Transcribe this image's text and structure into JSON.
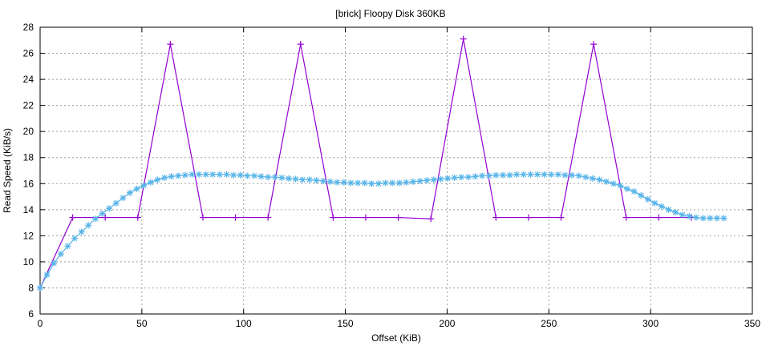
{
  "chart_data": {
    "type": "line",
    "title": "[brick] Floopy Disk 360KB",
    "xlabel": "Offset (KiB)",
    "ylabel": "Read Speed (KiB/s)",
    "xlim": [
      0,
      350
    ],
    "ylim": [
      6,
      28
    ],
    "xticks": [
      0,
      50,
      100,
      150,
      200,
      250,
      300,
      350
    ],
    "yticks": [
      6,
      8,
      10,
      12,
      14,
      16,
      18,
      20,
      22,
      24,
      26,
      28
    ],
    "grid": true,
    "legend": "none",
    "series": [
      {
        "color": "#9400d3",
        "marker": "plus",
        "x": [
          0,
          16,
          32,
          48,
          64,
          80,
          96,
          112,
          128,
          144,
          160,
          176,
          192,
          208,
          224,
          240,
          256,
          272,
          288,
          304,
          320
        ],
        "y": [
          8,
          13.4,
          13.4,
          13.4,
          26.7,
          13.4,
          13.4,
          13.4,
          26.7,
          13.4,
          13.4,
          13.4,
          13.3,
          27.1,
          13.4,
          13.4,
          13.4,
          26.7,
          13.4,
          13.4,
          13.4
        ]
      },
      {
        "color": "#56b4e9",
        "marker": "star",
        "x_range": [
          0,
          336
        ],
        "y": [
          8,
          9.0,
          9.9,
          10.6,
          11.2,
          11.8,
          12.3,
          12.8,
          13.3,
          13.7,
          14.1,
          14.5,
          14.9,
          15.3,
          15.6,
          15.85,
          16.1,
          16.3,
          16.45,
          16.55,
          16.6,
          16.65,
          16.7,
          16.7,
          16.7,
          16.7,
          16.7,
          16.7,
          16.65,
          16.65,
          16.6,
          16.6,
          16.55,
          16.5,
          16.5,
          16.45,
          16.4,
          16.35,
          16.3,
          16.3,
          16.25,
          16.2,
          16.15,
          16.1,
          16.1,
          16.05,
          16.05,
          16.05,
          16.0,
          16.0,
          16.05,
          16.05,
          16.05,
          16.1,
          16.15,
          16.2,
          16.25,
          16.3,
          16.35,
          16.4,
          16.45,
          16.5,
          16.5,
          16.55,
          16.6,
          16.6,
          16.65,
          16.65,
          16.65,
          16.7,
          16.7,
          16.7,
          16.7,
          16.7,
          16.7,
          16.7,
          16.65,
          16.65,
          16.6,
          16.5,
          16.4,
          16.3,
          16.15,
          16.0,
          15.85,
          15.6,
          15.4,
          15.1,
          14.8,
          14.5,
          14.25,
          14.0,
          13.8,
          13.6,
          13.5,
          13.4,
          13.35,
          13.35,
          13.35,
          13.35
        ]
      }
    ]
  }
}
